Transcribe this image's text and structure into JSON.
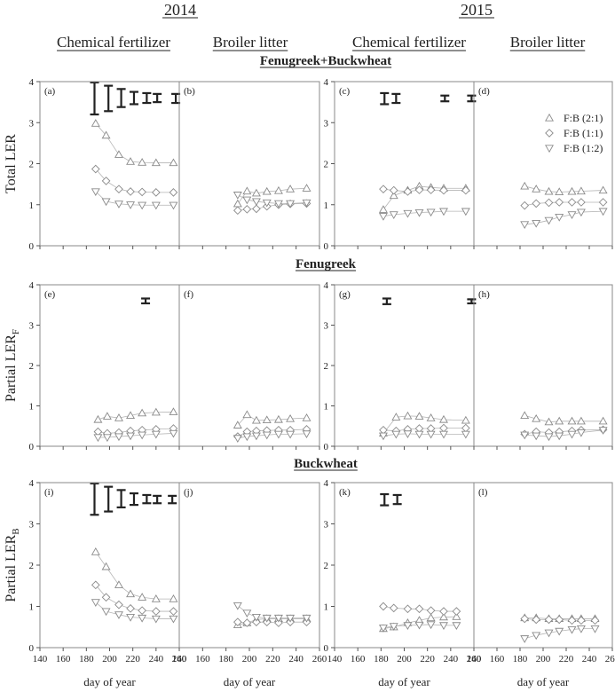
{
  "years": [
    "2014",
    "2015"
  ],
  "columns": [
    "Chemical fertilizer",
    "Broiler litter",
    "Chemical fertilizer",
    "Broiler litter"
  ],
  "rows": [
    "Fenugreek+Buckwheat",
    "Fenugreek",
    "Buckwheat"
  ],
  "ylabels": [
    "Total LER",
    "Partial LER",
    "Partial LER"
  ],
  "ylabel_subs": [
    "",
    "F",
    "B"
  ],
  "xlabel": "day of year",
  "panel_letters": [
    "(a)",
    "(b)",
    "(c)",
    "(d)",
    "(e)",
    "(f)",
    "(g)",
    "(h)",
    "(i)",
    "(j)",
    "(k)",
    "(l)"
  ],
  "chart_data": {
    "type": "scatter",
    "xlim": [
      140,
      260
    ],
    "ylim": [
      0,
      4
    ],
    "xticks": [
      140,
      160,
      180,
      200,
      220,
      240,
      260
    ],
    "yticks": [
      0,
      1,
      2,
      3,
      4
    ],
    "legend": {
      "placement": "top-right of panel (d)",
      "entries": [
        {
          "label": "F:B (2:1)",
          "marker": "triangle-up"
        },
        {
          "label": "F:B (1:1)",
          "marker": "diamond"
        },
        {
          "label": "F:B (1:2)",
          "marker": "triangle-down"
        }
      ]
    },
    "panels": [
      {
        "id": "a",
        "x": [
          188,
          197,
          208,
          218,
          228,
          240,
          255
        ],
        "series": [
          {
            "name": "F:B (2:1)",
            "values": [
              2.98,
              2.69,
              2.22,
              2.05,
              2.03,
              2.02,
              2.02
            ]
          },
          {
            "name": "F:B (1:1)",
            "values": [
              1.87,
              1.58,
              1.38,
              1.32,
              1.31,
              1.3,
              1.3
            ]
          },
          {
            "name": "F:B (1:2)",
            "values": [
              1.32,
              1.08,
              1.02,
              1.0,
              0.99,
              0.99,
              0.99
            ]
          }
        ],
        "errorbars": [
          {
            "x": 187,
            "lo": 3.2,
            "hi": 3.98
          },
          {
            "x": 199,
            "lo": 3.28,
            "hi": 3.9
          },
          {
            "x": 210,
            "lo": 3.38,
            "hi": 3.82
          },
          {
            "x": 221,
            "lo": 3.45,
            "hi": 3.75
          },
          {
            "x": 232,
            "lo": 3.48,
            "hi": 3.72
          },
          {
            "x": 241,
            "lo": 3.5,
            "hi": 3.7
          },
          {
            "x": 257,
            "lo": 3.48,
            "hi": 3.7
          }
        ]
      },
      {
        "id": "b",
        "x": [
          190,
          198,
          206,
          215,
          225,
          235,
          249
        ],
        "series": [
          {
            "name": "F:B (2:1)",
            "values": [
              1.02,
              1.33,
              1.28,
              1.32,
              1.34,
              1.38,
              1.4
            ]
          },
          {
            "name": "F:B (1:1)",
            "values": [
              0.86,
              0.89,
              0.9,
              0.96,
              1.0,
              1.02,
              1.03
            ]
          },
          {
            "name": "F:B (1:2)",
            "values": [
              1.24,
              1.12,
              1.08,
              1.05,
              1.03,
              1.03,
              1.05
            ]
          }
        ],
        "errorbars": []
      },
      {
        "id": "c",
        "x": [
          182,
          191,
          203,
          213,
          223,
          234,
          253
        ],
        "series": [
          {
            "name": "F:B (2:1)",
            "values": [
              0.88,
              1.22,
              1.35,
              1.45,
              1.42,
              1.4,
              1.4
            ]
          },
          {
            "name": "F:B (1:1)",
            "values": [
              1.38,
              1.35,
              1.32,
              1.36,
              1.36,
              1.35,
              1.35
            ]
          },
          {
            "name": "F:B (1:2)",
            "values": [
              0.72,
              0.76,
              0.79,
              0.81,
              0.82,
              0.84,
              0.84
            ]
          }
        ],
        "errorbars": [
          {
            "x": 183,
            "lo": 3.45,
            "hi": 3.72
          },
          {
            "x": 193,
            "lo": 3.48,
            "hi": 3.7
          },
          {
            "x": 235,
            "lo": 3.52,
            "hi": 3.66
          },
          {
            "x": 258,
            "lo": 3.52,
            "hi": 3.66
          }
        ]
      },
      {
        "id": "d",
        "x": [
          184,
          194,
          205,
          214,
          225,
          233,
          252
        ],
        "series": [
          {
            "name": "F:B (2:1)",
            "values": [
              1.45,
              1.38,
              1.32,
              1.31,
              1.32,
              1.33,
              1.35
            ]
          },
          {
            "name": "F:B (1:1)",
            "values": [
              0.98,
              1.03,
              1.05,
              1.06,
              1.06,
              1.06,
              1.06
            ]
          },
          {
            "name": "F:B (1:2)",
            "values": [
              0.52,
              0.55,
              0.62,
              0.7,
              0.76,
              0.82,
              0.84
            ]
          }
        ],
        "errorbars": []
      },
      {
        "id": "e",
        "x": [
          190,
          198,
          208,
          218,
          228,
          240,
          255
        ],
        "series": [
          {
            "name": "F:B (2:1)",
            "values": [
              0.66,
              0.74,
              0.7,
              0.76,
              0.82,
              0.84,
              0.85
            ]
          },
          {
            "name": "F:B (1:1)",
            "values": [
              0.36,
              0.32,
              0.34,
              0.38,
              0.4,
              0.42,
              0.44
            ]
          },
          {
            "name": "F:B (1:2)",
            "values": [
              0.22,
              0.22,
              0.24,
              0.26,
              0.28,
              0.3,
              0.32
            ]
          }
        ],
        "errorbars": [
          {
            "x": 231,
            "lo": 3.54,
            "hi": 3.66
          }
        ]
      },
      {
        "id": "f",
        "x": [
          190,
          198,
          206,
          215,
          225,
          235,
          249
        ],
        "series": [
          {
            "name": "F:B (2:1)",
            "values": [
              0.52,
              0.78,
              0.64,
              0.65,
              0.66,
              0.68,
              0.7
            ]
          },
          {
            "name": "F:B (1:1)",
            "values": [
              0.24,
              0.36,
              0.38,
              0.39,
              0.4,
              0.4,
              0.42
            ]
          },
          {
            "name": "F:B (1:2)",
            "values": [
              0.2,
              0.24,
              0.26,
              0.28,
              0.3,
              0.3,
              0.31
            ]
          }
        ],
        "errorbars": []
      },
      {
        "id": "g",
        "x": [
          182,
          193,
          203,
          213,
          223,
          234,
          253
        ],
        "series": [
          {
            "name": "F:B (2:1)",
            "values": [
              0.32,
              0.72,
              0.75,
              0.74,
              0.7,
              0.66,
              0.64
            ]
          },
          {
            "name": "F:B (1:1)",
            "values": [
              0.4,
              0.38,
              0.42,
              0.44,
              0.44,
              0.45,
              0.45
            ]
          },
          {
            "name": "F:B (1:2)",
            "values": [
              0.26,
              0.3,
              0.31,
              0.3,
              0.3,
              0.3,
              0.3
            ]
          }
        ],
        "errorbars": [
          {
            "x": 185,
            "lo": 3.52,
            "hi": 3.66
          },
          {
            "x": 258,
            "lo": 3.54,
            "hi": 3.64
          }
        ]
      },
      {
        "id": "h",
        "x": [
          184,
          194,
          205,
          214,
          225,
          233,
          252
        ],
        "series": [
          {
            "name": "F:B (2:1)",
            "values": [
              0.76,
              0.68,
              0.6,
              0.62,
              0.62,
              0.62,
              0.62
            ]
          },
          {
            "name": "F:B (1:1)",
            "values": [
              0.3,
              0.36,
              0.34,
              0.36,
              0.38,
              0.4,
              0.41
            ]
          },
          {
            "name": "F:B (1:2)",
            "values": [
              0.28,
              0.26,
              0.24,
              0.26,
              0.3,
              0.34,
              0.4
            ]
          }
        ],
        "errorbars": []
      },
      {
        "id": "i",
        "x": [
          188,
          197,
          208,
          218,
          228,
          240,
          255
        ],
        "series": [
          {
            "name": "F:B (2:1)",
            "values": [
              2.32,
              1.96,
              1.52,
              1.3,
              1.22,
              1.18,
              1.18
            ]
          },
          {
            "name": "F:B (1:1)",
            "values": [
              1.52,
              1.22,
              1.04,
              0.95,
              0.9,
              0.88,
              0.88
            ]
          },
          {
            "name": "F:B (1:2)",
            "values": [
              1.1,
              0.88,
              0.8,
              0.74,
              0.72,
              0.7,
              0.7
            ]
          }
        ],
        "errorbars": [
          {
            "x": 187,
            "lo": 3.22,
            "hi": 3.98
          },
          {
            "x": 199,
            "lo": 3.3,
            "hi": 3.9
          },
          {
            "x": 210,
            "lo": 3.4,
            "hi": 3.82
          },
          {
            "x": 221,
            "lo": 3.46,
            "hi": 3.74
          },
          {
            "x": 232,
            "lo": 3.5,
            "hi": 3.7
          },
          {
            "x": 241,
            "lo": 3.5,
            "hi": 3.68
          },
          {
            "x": 254,
            "lo": 3.5,
            "hi": 3.68
          }
        ]
      },
      {
        "id": "j",
        "x": [
          190,
          198,
          206,
          215,
          225,
          235,
          249
        ],
        "series": [
          {
            "name": "F:B (2:1)",
            "values": [
              0.55,
              0.6,
              0.68,
              0.7,
              0.7,
              0.7,
              0.7
            ]
          },
          {
            "name": "F:B (1:1)",
            "values": [
              0.62,
              0.6,
              0.62,
              0.62,
              0.6,
              0.62,
              0.62
            ]
          },
          {
            "name": "F:B (1:2)",
            "values": [
              1.02,
              0.84,
              0.74,
              0.72,
              0.72,
              0.72,
              0.72
            ]
          }
        ],
        "errorbars": []
      },
      {
        "id": "k",
        "x": [
          182,
          191,
          203,
          213,
          223,
          234,
          245
        ],
        "series": [
          {
            "name": "F:B (2:1)",
            "values": [
              0.46,
              0.5,
              0.6,
              0.66,
              0.72,
              0.74,
              0.75
            ]
          },
          {
            "name": "F:B (1:1)",
            "values": [
              1.0,
              0.96,
              0.94,
              0.94,
              0.9,
              0.88,
              0.88
            ]
          },
          {
            "name": "F:B (1:2)",
            "values": [
              0.48,
              0.52,
              0.54,
              0.55,
              0.56,
              0.54,
              0.54
            ]
          }
        ],
        "errorbars": [
          {
            "x": 183,
            "lo": 3.45,
            "hi": 3.72
          },
          {
            "x": 194,
            "lo": 3.48,
            "hi": 3.7
          }
        ]
      },
      {
        "id": "l",
        "x": [
          184,
          194,
          205,
          214,
          225,
          233,
          245
        ],
        "series": [
          {
            "name": "F:B (2:1)",
            "values": [
              0.72,
              0.72,
              0.7,
              0.7,
              0.7,
              0.7,
              0.7
            ]
          },
          {
            "name": "F:B (1:1)",
            "values": [
              0.7,
              0.68,
              0.68,
              0.68,
              0.66,
              0.66,
              0.66
            ]
          },
          {
            "name": "F:B (1:2)",
            "values": [
              0.22,
              0.3,
              0.36,
              0.4,
              0.44,
              0.46,
              0.46
            ]
          }
        ],
        "errorbars": []
      }
    ]
  }
}
